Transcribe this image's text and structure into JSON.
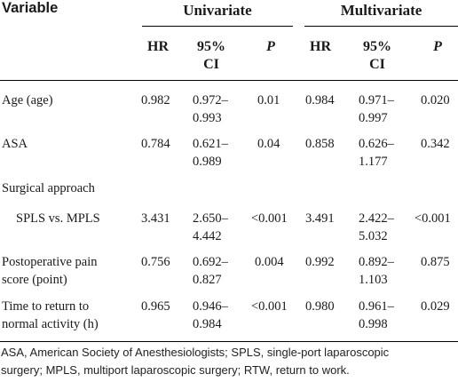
{
  "header": {
    "variable_label": "Variable",
    "groups": [
      "Univariate",
      "Multivariate"
    ],
    "subheaders": {
      "hr": "HR",
      "ci_line1": "95%",
      "ci_line2": "CI",
      "p": "P"
    }
  },
  "rows": [
    {
      "variable": [
        "Age (age)"
      ],
      "uni": {
        "hr": "0.982",
        "ci": [
          "0.972–",
          "0.993"
        ],
        "p": "0.01"
      },
      "multi": {
        "hr": "0.984",
        "ci": [
          "0.971–",
          "0.997"
        ],
        "p": "0.020"
      }
    },
    {
      "variable": [
        "ASA"
      ],
      "uni": {
        "hr": "0.784",
        "ci": [
          "0.621–",
          "0.989"
        ],
        "p": "0.04"
      },
      "multi": {
        "hr": "0.858",
        "ci": [
          "0.626–",
          "1.177"
        ],
        "p": "0.342"
      }
    },
    {
      "variable": [
        "Surgical approach"
      ],
      "section": true
    },
    {
      "variable": [
        "SPLS vs. MPLS"
      ],
      "indent": true,
      "uni": {
        "hr": "3.431",
        "ci": [
          "2.650–",
          "4.442"
        ],
        "p": "<0.001"
      },
      "multi": {
        "hr": "3.491",
        "ci": [
          "2.422–",
          "5.032"
        ],
        "p": "<0.001"
      }
    },
    {
      "variable": [
        "Postoperative pain",
        "score (point)"
      ],
      "uni": {
        "hr": "0.756",
        "ci": [
          "0.692–",
          "0.827"
        ],
        "p": "0.004"
      },
      "multi": {
        "hr": "0.992",
        "ci": [
          "0.892–",
          "1.103"
        ],
        "p": "0.875"
      }
    },
    {
      "variable": [
        "Time to return to",
        "normal activity (h)"
      ],
      "uni": {
        "hr": "0.965",
        "ci": [
          "0.946–",
          "0.984"
        ],
        "p": "<0.001"
      },
      "multi": {
        "hr": "0.980",
        "ci": [
          "0.961–",
          "0.998"
        ],
        "p": "0.029"
      }
    }
  ],
  "footnote": [
    "ASA, American Society of Anesthesiologists; SPLS, single-port laparoscopic",
    "surgery; MPLS, multiport laparoscopic surgery; RTW, return to work."
  ]
}
